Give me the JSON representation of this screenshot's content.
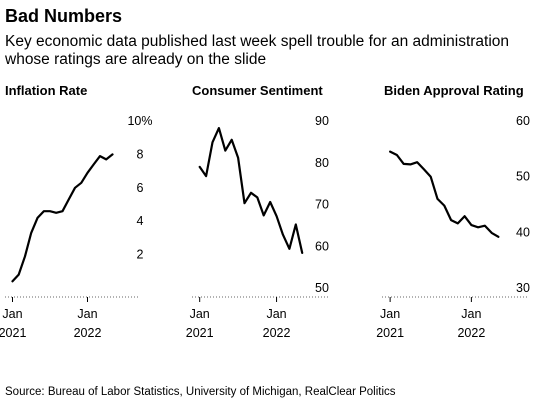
{
  "header": {
    "title": "Bad Numbers",
    "subtitle": "Key economic data published last week spell trouble for an administration whose ratings are already on the slide"
  },
  "footer": {
    "source": "Source: Bureau of Labor Statistics, University of Michigan, RealClear Politics"
  },
  "chart_data": [
    {
      "type": "line",
      "title": "Inflation Rate",
      "ylim": [
        0,
        10
      ],
      "yticks": [
        2,
        4,
        6,
        8,
        10
      ],
      "ytick_labels": [
        "2",
        "4",
        "6",
        "8",
        "10%"
      ],
      "x_tick_labels": [
        [
          "Jan",
          "2021"
        ],
        [
          "Jan",
          "2022"
        ]
      ],
      "x_ticks": [
        2021.0,
        2022.0
      ],
      "xlim": [
        2020.9,
        2022.5
      ],
      "x": [
        2021.0,
        2021.083,
        2021.167,
        2021.25,
        2021.333,
        2021.417,
        2021.5,
        2021.583,
        2021.667,
        2021.75,
        2021.833,
        2021.917,
        2022.0,
        2022.083,
        2022.167,
        2022.25,
        2022.333
      ],
      "y": [
        0.4,
        0.8,
        1.9,
        3.3,
        4.2,
        4.6,
        4.6,
        4.5,
        4.6,
        5.3,
        6.0,
        6.3,
        6.9,
        7.4,
        7.9,
        7.7,
        8.0
      ]
    },
    {
      "type": "line",
      "title": "Consumer Sentiment",
      "ylim": [
        50,
        90
      ],
      "yticks": [
        50,
        60,
        70,
        80,
        90
      ],
      "ytick_labels": [
        "50",
        "60",
        "70",
        "80",
        "90"
      ],
      "x_tick_labels": [
        [
          "Jan",
          "2021"
        ],
        [
          "Jan",
          "2022"
        ]
      ],
      "x_ticks": [
        2021.0,
        2022.0
      ],
      "xlim": [
        2020.9,
        2022.5
      ],
      "x": [
        2021.0,
        2021.083,
        2021.167,
        2021.25,
        2021.333,
        2021.417,
        2021.5,
        2021.583,
        2021.667,
        2021.75,
        2021.833,
        2021.917,
        2022.0,
        2022.083,
        2022.167,
        2022.25,
        2022.333
      ],
      "y": [
        79.0,
        76.8,
        84.9,
        88.3,
        82.9,
        85.5,
        81.2,
        70.3,
        72.8,
        71.7,
        67.4,
        70.6,
        67.2,
        62.8,
        59.4,
        65.2,
        58.4
      ]
    },
    {
      "type": "line",
      "title": "Biden Approval Rating",
      "ylim": [
        30,
        60
      ],
      "yticks": [
        30,
        40,
        50,
        60
      ],
      "ytick_labels": [
        "30",
        "40",
        "50",
        "60"
      ],
      "x_tick_labels": [
        [
          "Jan",
          "2021"
        ],
        [
          "Jan",
          "2022"
        ]
      ],
      "x_ticks": [
        2021.0,
        2022.0
      ],
      "xlim": [
        2020.9,
        2022.5
      ],
      "x": [
        2021.0,
        2021.083,
        2021.167,
        2021.25,
        2021.333,
        2021.417,
        2021.5,
        2021.583,
        2021.667,
        2021.75,
        2021.833,
        2021.917,
        2022.0,
        2022.083,
        2022.167,
        2022.25,
        2022.333
      ],
      "y": [
        54.5,
        53.9,
        52.3,
        52.2,
        52.6,
        51.3,
        50.0,
        46.0,
        44.8,
        42.2,
        41.6,
        42.9,
        41.3,
        40.9,
        41.2,
        39.9,
        39.2
      ]
    }
  ]
}
